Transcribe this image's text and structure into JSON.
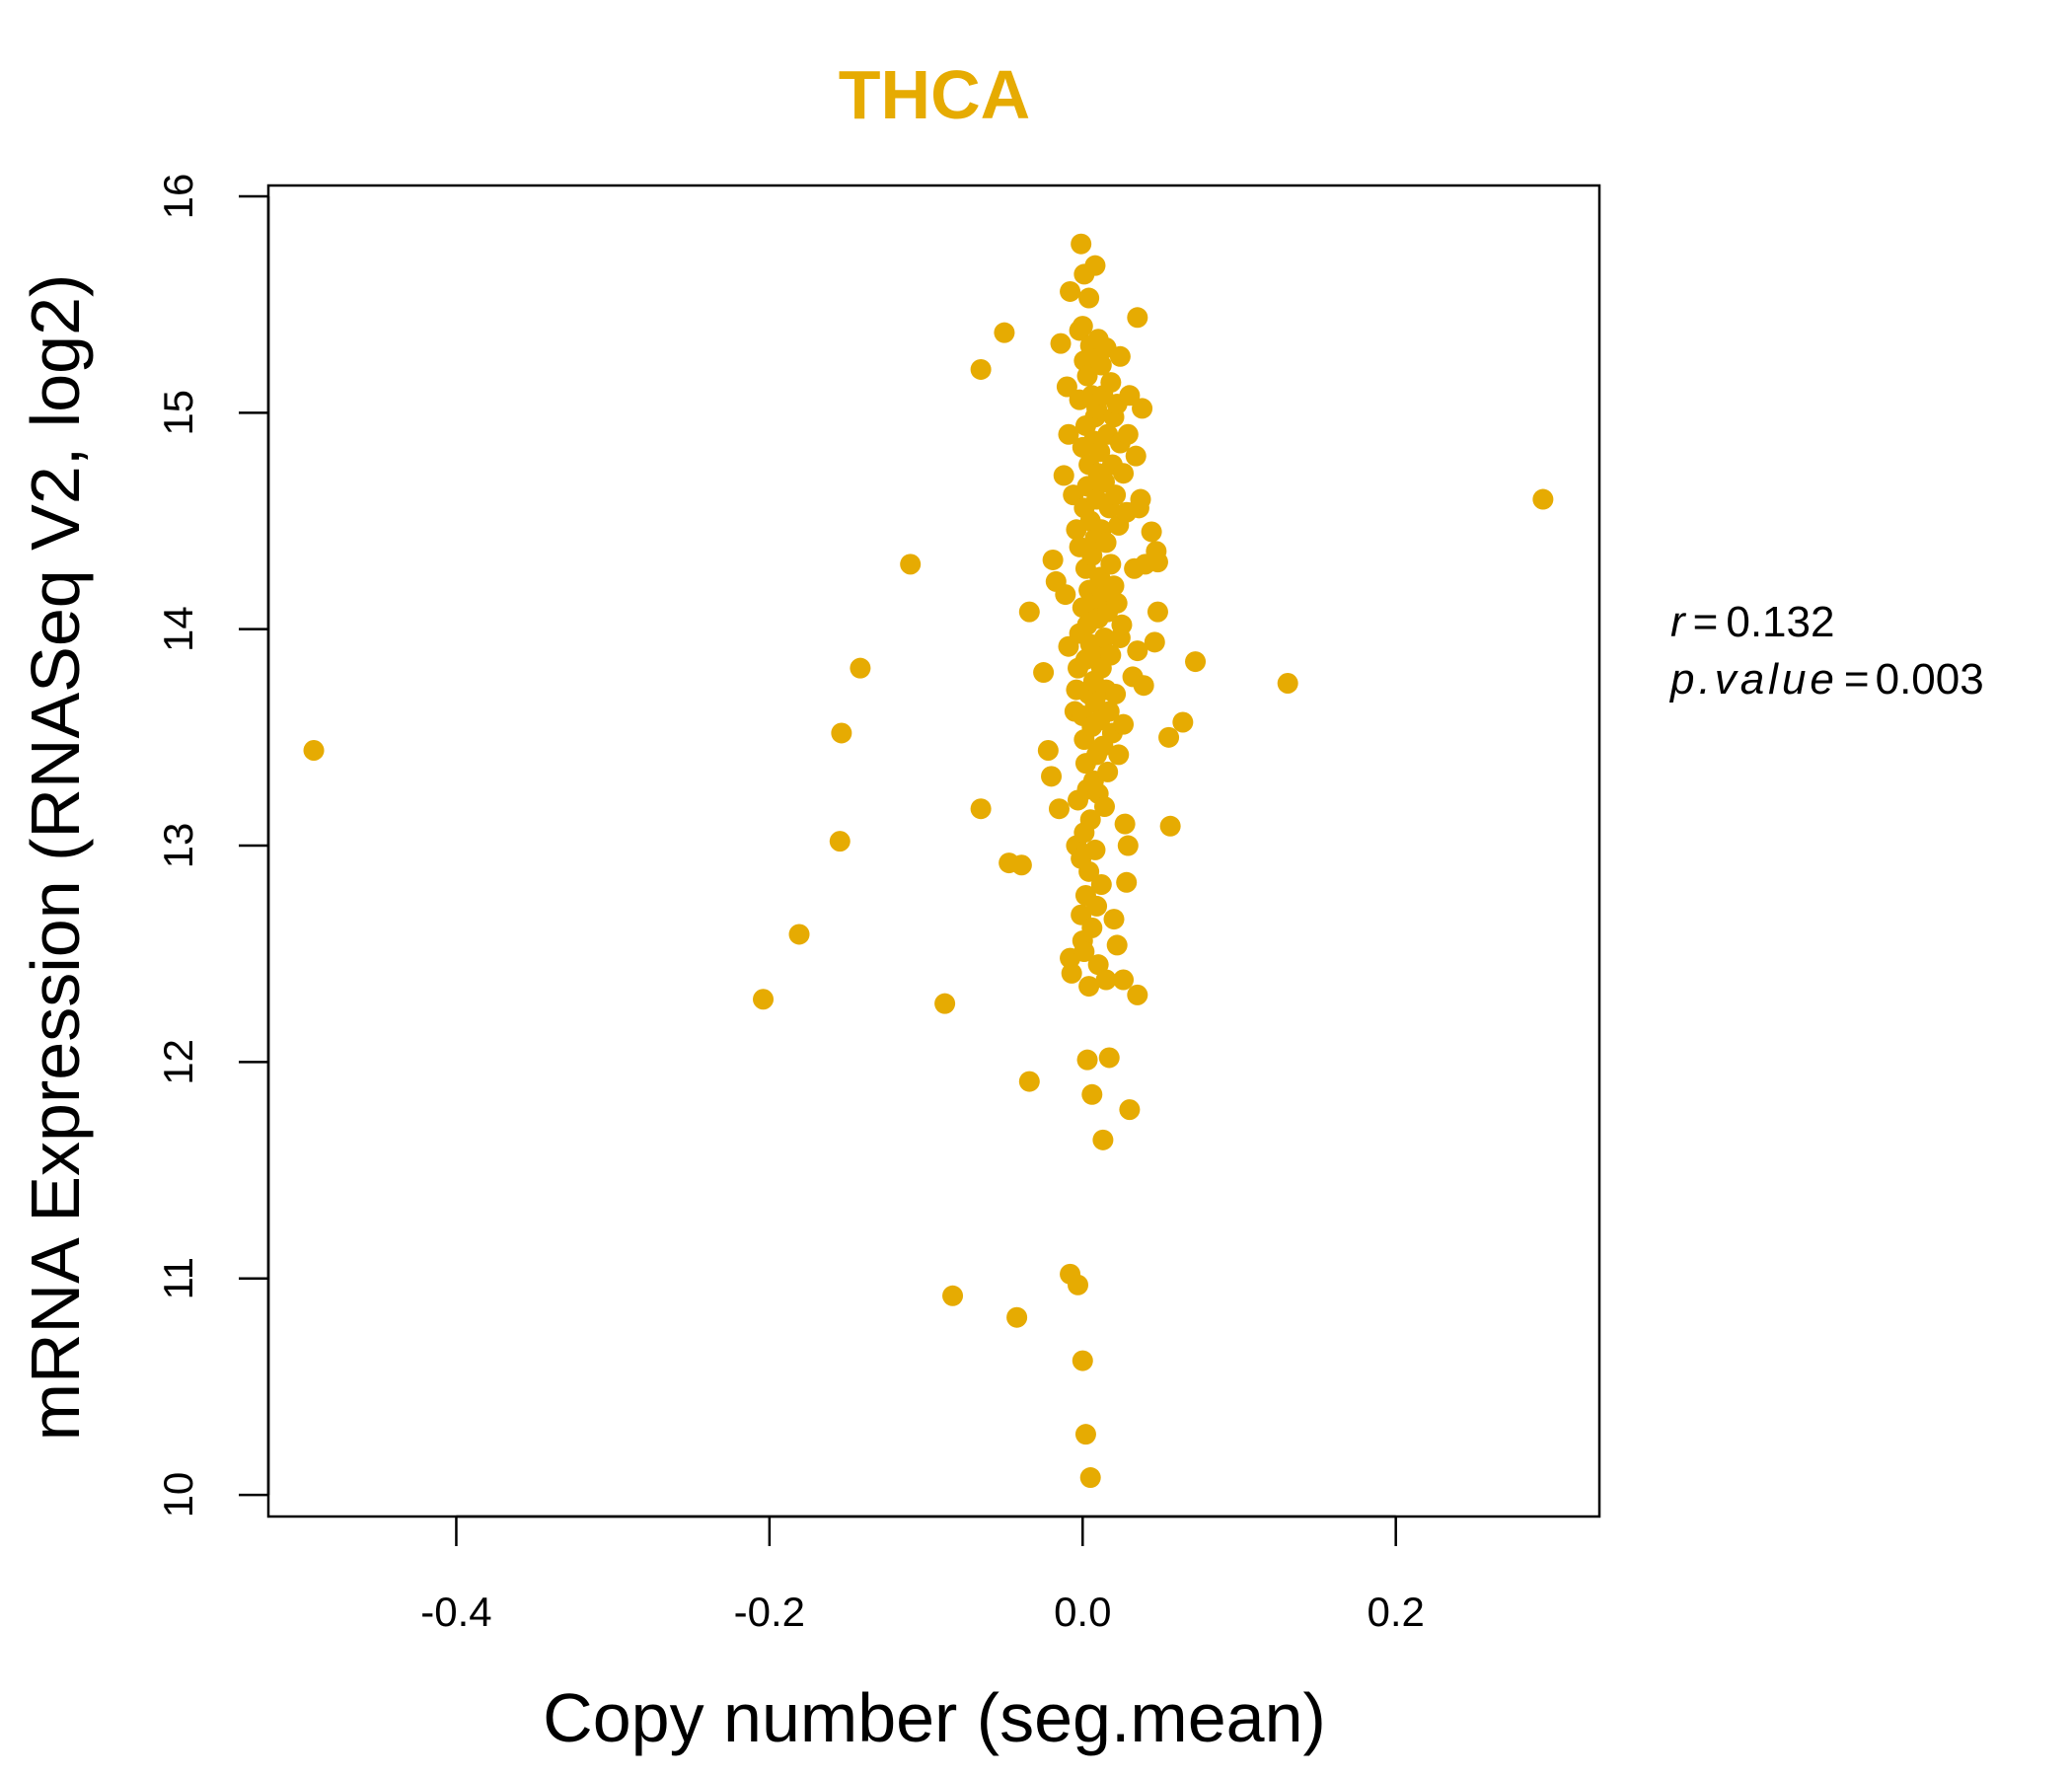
{
  "chart_data": {
    "type": "scatter",
    "title": "THCA",
    "xlabel": "Copy number (seg.mean)",
    "ylabel": "mRNA Expression (RNASeq V2, log2)",
    "xlim": [
      -0.52,
      0.33
    ],
    "ylim": [
      9.9,
      16.05
    ],
    "xticks": [
      -0.4,
      -0.2,
      0.0,
      0.2
    ],
    "xtick_labels": [
      "-0.4",
      "-0.2",
      "0.0",
      "0.2"
    ],
    "yticks": [
      10,
      11,
      12,
      13,
      14,
      15,
      16
    ],
    "ytick_labels": [
      "10",
      "11",
      "12",
      "13",
      "14",
      "15",
      "16"
    ],
    "color": "#E6AB02",
    "stats": {
      "r_label": "r",
      "r_value": "0.132",
      "p_label": "p.value",
      "p_value": "0.003"
    },
    "points": [
      [
        -0.491,
        13.44
      ],
      [
        -0.204,
        12.29
      ],
      [
        -0.181,
        12.59
      ],
      [
        -0.155,
        13.02
      ],
      [
        -0.154,
        13.52
      ],
      [
        -0.142,
        13.82
      ],
      [
        -0.11,
        14.3
      ],
      [
        -0.088,
        12.27
      ],
      [
        -0.083,
        10.92
      ],
      [
        -0.065,
        15.2
      ],
      [
        -0.065,
        13.17
      ],
      [
        -0.05,
        15.37
      ],
      [
        -0.047,
        12.92
      ],
      [
        -0.042,
        10.82
      ],
      [
        -0.039,
        12.91
      ],
      [
        -0.034,
        14.08
      ],
      [
        -0.034,
        11.91
      ],
      [
        -0.025,
        13.8
      ],
      [
        -0.022,
        13.44
      ],
      [
        -0.02,
        13.32
      ],
      [
        -0.019,
        14.32
      ],
      [
        -0.017,
        14.22
      ],
      [
        -0.015,
        13.17
      ],
      [
        -0.014,
        15.32
      ],
      [
        -0.012,
        14.71
      ],
      [
        -0.011,
        14.16
      ],
      [
        -0.01,
        15.12
      ],
      [
        -0.009,
        13.92
      ],
      [
        -0.009,
        14.9
      ],
      [
        -0.008,
        15.56
      ],
      [
        -0.008,
        11.02
      ],
      [
        -0.008,
        12.48
      ],
      [
        -0.007,
        12.41
      ],
      [
        -0.006,
        14.62
      ],
      [
        -0.005,
        13.62
      ],
      [
        -0.004,
        13.72
      ],
      [
        -0.004,
        14.46
      ],
      [
        -0.004,
        13.0
      ],
      [
        -0.003,
        13.82
      ],
      [
        -0.003,
        13.21
      ],
      [
        -0.003,
        10.97
      ],
      [
        -0.002,
        15.06
      ],
      [
        -0.002,
        14.38
      ],
      [
        -0.002,
        15.38
      ],
      [
        -0.002,
        13.98
      ],
      [
        -0.001,
        15.78
      ],
      [
        -0.001,
        12.68
      ],
      [
        -0.001,
        12.94
      ],
      [
        0.0,
        15.4
      ],
      [
        0.0,
        14.84
      ],
      [
        0.0,
        14.1
      ],
      [
        0.0,
        13.6
      ],
      [
        0.0,
        12.56
      ],
      [
        0.0,
        10.62
      ],
      [
        0.001,
        15.64
      ],
      [
        0.001,
        15.24
      ],
      [
        0.001,
        14.56
      ],
      [
        0.001,
        13.49
      ],
      [
        0.001,
        13.06
      ],
      [
        0.001,
        12.51
      ],
      [
        0.002,
        14.94
      ],
      [
        0.002,
        14.28
      ],
      [
        0.002,
        13.86
      ],
      [
        0.002,
        13.38
      ],
      [
        0.002,
        12.77
      ],
      [
        0.002,
        10.28
      ],
      [
        0.003,
        15.17
      ],
      [
        0.003,
        14.66
      ],
      [
        0.003,
        14.02
      ],
      [
        0.003,
        13.26
      ],
      [
        0.003,
        12.01
      ],
      [
        0.004,
        15.53
      ],
      [
        0.004,
        14.76
      ],
      [
        0.004,
        14.18
      ],
      [
        0.004,
        13.7
      ],
      [
        0.004,
        12.88
      ],
      [
        0.004,
        12.35
      ],
      [
        0.005,
        15.31
      ],
      [
        0.005,
        14.5
      ],
      [
        0.005,
        13.93
      ],
      [
        0.005,
        13.12
      ],
      [
        0.005,
        10.08
      ],
      [
        0.006,
        15.08
      ],
      [
        0.006,
        14.34
      ],
      [
        0.006,
        13.55
      ],
      [
        0.006,
        12.62
      ],
      [
        0.006,
        11.85
      ],
      [
        0.007,
        15.27
      ],
      [
        0.007,
        14.87
      ],
      [
        0.007,
        14.12
      ],
      [
        0.007,
        13.76
      ],
      [
        0.007,
        13.3
      ],
      [
        0.008,
        15.68
      ],
      [
        0.008,
        14.98
      ],
      [
        0.008,
        14.42
      ],
      [
        0.008,
        13.66
      ],
      [
        0.008,
        12.98
      ],
      [
        0.009,
        15.02
      ],
      [
        0.009,
        14.6
      ],
      [
        0.009,
        13.9
      ],
      [
        0.009,
        13.42
      ],
      [
        0.009,
        12.72
      ],
      [
        0.01,
        15.34
      ],
      [
        0.01,
        14.72
      ],
      [
        0.01,
        14.05
      ],
      [
        0.01,
        13.24
      ],
      [
        0.01,
        12.45
      ],
      [
        0.011,
        14.82
      ],
      [
        0.011,
        14.24
      ],
      [
        0.011,
        13.58
      ],
      [
        0.012,
        15.22
      ],
      [
        0.012,
        14.46
      ],
      [
        0.012,
        13.82
      ],
      [
        0.012,
        12.82
      ],
      [
        0.013,
        15.08
      ],
      [
        0.013,
        14.15
      ],
      [
        0.013,
        13.46
      ],
      [
        0.013,
        11.64
      ],
      [
        0.014,
        14.68
      ],
      [
        0.014,
        13.96
      ],
      [
        0.014,
        13.18
      ],
      [
        0.015,
        15.3
      ],
      [
        0.015,
        14.4
      ],
      [
        0.015,
        13.72
      ],
      [
        0.015,
        12.38
      ],
      [
        0.016,
        14.9
      ],
      [
        0.016,
        14.08
      ],
      [
        0.016,
        13.34
      ],
      [
        0.017,
        14.56
      ],
      [
        0.017,
        13.62
      ],
      [
        0.017,
        12.02
      ],
      [
        0.018,
        15.14
      ],
      [
        0.018,
        14.3
      ],
      [
        0.018,
        13.88
      ],
      [
        0.019,
        14.76
      ],
      [
        0.019,
        13.52
      ],
      [
        0.02,
        14.98
      ],
      [
        0.02,
        14.2
      ],
      [
        0.02,
        12.66
      ],
      [
        0.021,
        14.62
      ],
      [
        0.021,
        13.7
      ],
      [
        0.022,
        15.04
      ],
      [
        0.022,
        14.12
      ],
      [
        0.022,
        12.54
      ],
      [
        0.023,
        14.48
      ],
      [
        0.023,
        13.42
      ],
      [
        0.024,
        15.26
      ],
      [
        0.024,
        14.86
      ],
      [
        0.024,
        13.96
      ],
      [
        0.025,
        14.02
      ],
      [
        0.026,
        14.72
      ],
      [
        0.026,
        13.56
      ],
      [
        0.026,
        12.38
      ],
      [
        0.027,
        13.1
      ],
      [
        0.028,
        14.54
      ],
      [
        0.028,
        12.83
      ],
      [
        0.029,
        14.9
      ],
      [
        0.029,
        13.0
      ],
      [
        0.03,
        15.08
      ],
      [
        0.03,
        11.78
      ],
      [
        0.032,
        13.78
      ],
      [
        0.033,
        14.28
      ],
      [
        0.034,
        14.8
      ],
      [
        0.035,
        15.44
      ],
      [
        0.035,
        13.9
      ],
      [
        0.035,
        12.31
      ],
      [
        0.036,
        14.56
      ],
      [
        0.037,
        14.6
      ],
      [
        0.038,
        15.02
      ],
      [
        0.039,
        13.74
      ],
      [
        0.04,
        14.3
      ],
      [
        0.044,
        14.45
      ],
      [
        0.046,
        13.94
      ],
      [
        0.047,
        14.36
      ],
      [
        0.048,
        14.31
      ],
      [
        0.048,
        14.08
      ],
      [
        0.055,
        13.5
      ],
      [
        0.056,
        13.09
      ],
      [
        0.064,
        13.57
      ],
      [
        0.072,
        13.85
      ],
      [
        0.131,
        13.75
      ],
      [
        0.294,
        14.6
      ]
    ]
  }
}
